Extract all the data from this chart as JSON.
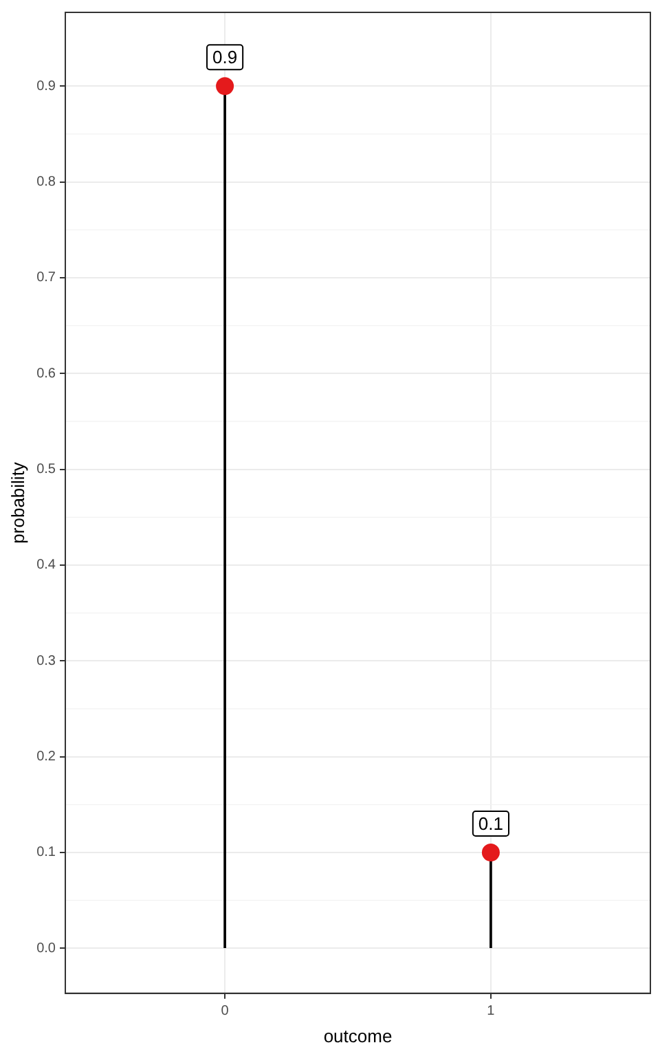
{
  "chart_data": {
    "type": "lollipop",
    "xlabel": "outcome",
    "ylabel": "probability",
    "categories": [
      "0",
      "1"
    ],
    "series": [
      {
        "color": "#e41a1c",
        "values": [
          0.9,
          0.1
        ]
      }
    ],
    "ylim": [
      -0.047,
      0.977
    ],
    "yticks": [
      {
        "value": 0,
        "label": "0.0"
      },
      {
        "value": 0.1,
        "label": "0.1"
      },
      {
        "value": 0.2,
        "label": "0.2"
      },
      {
        "value": 0.3,
        "label": "0.3"
      },
      {
        "value": 0.4,
        "label": "0.4"
      },
      {
        "value": 0.5,
        "label": "0.5"
      },
      {
        "value": 0.6,
        "label": "0.6"
      },
      {
        "value": 0.7,
        "label": "0.7"
      },
      {
        "value": 0.8,
        "label": "0.8"
      },
      {
        "value": 0.9,
        "label": "0.9"
      }
    ],
    "grid": true,
    "legend": false,
    "marker": "circle",
    "data_labels": true
  }
}
